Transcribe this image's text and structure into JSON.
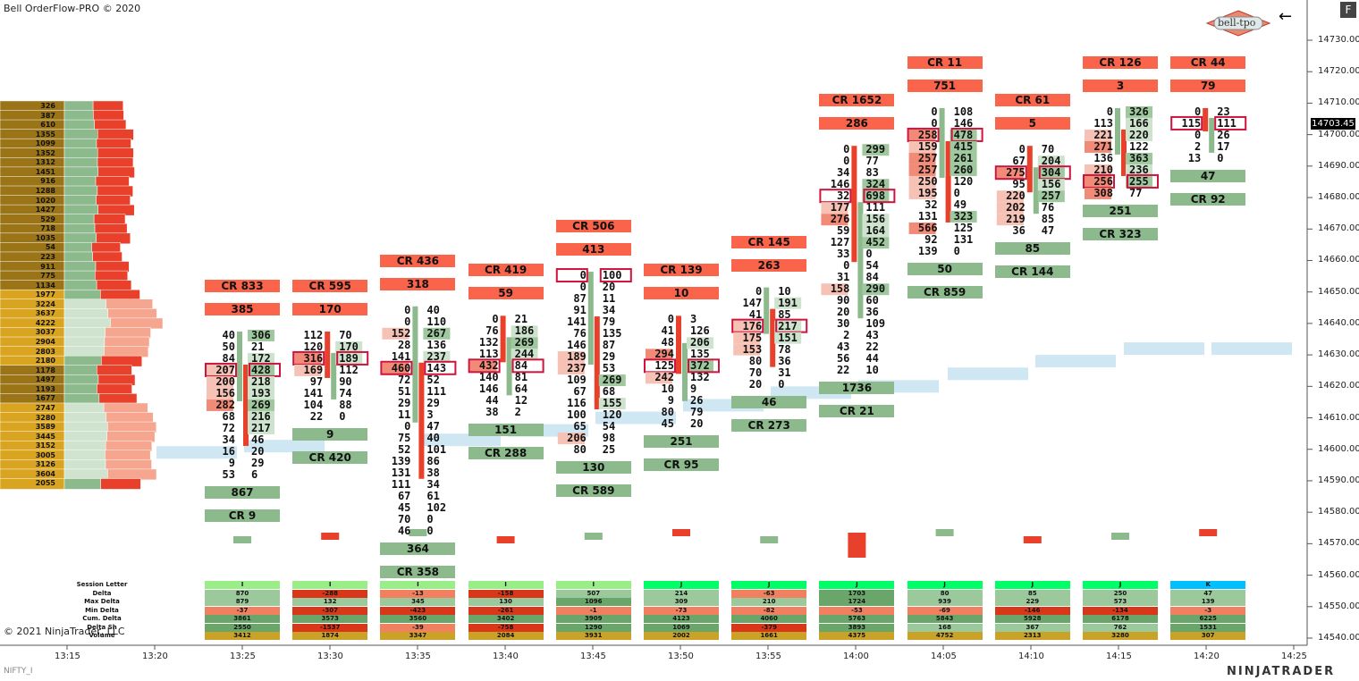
{
  "header": {
    "title": "Bell OrderFlow-PRO © 2020",
    "copyright": "© 2021 NinjaTrader, LLC",
    "instrument": "NIFTY_I",
    "brand": "NINJATRADER",
    "logo_text": "bell-tpo",
    "f_button": "F",
    "current_price": "14703.45"
  },
  "colors": {
    "cr_red": "#f9644a",
    "buy_green": "#8dba8d",
    "sell_red": "#e8402a",
    "imbalance_box": "#d0133c",
    "va_blue": "#cfe6f3",
    "session_i": "#99ee88",
    "session_j": "#00ff66",
    "session_k": "#00c0ff",
    "vp_gold": "#c9a227"
  },
  "chart_data": {
    "type": "table",
    "y_axis": {
      "min": 14540,
      "max": 14730,
      "ticks": [
        "14730.00",
        "14720.00",
        "14710.00",
        "14700.00",
        "14690.00",
        "14680.00",
        "14670.00",
        "14660.00",
        "14650.00",
        "14640.00",
        "14630.00",
        "14620.00",
        "14610.00",
        "14600.00",
        "14590.00",
        "14580.00",
        "14570.00",
        "14560.00",
        "14550.00",
        "14540.00"
      ]
    },
    "x_axis": {
      "ticks": [
        "13:15",
        "13:20",
        "13:25",
        "13:30",
        "13:35",
        "13:40",
        "13:45",
        "13:50",
        "13:55",
        "14:00",
        "14:05",
        "14:10",
        "14:15",
        "14:20",
        "14:25"
      ]
    },
    "volume_profile": [
      {
        "price": 14709,
        "vol": "326"
      },
      {
        "price": 14706,
        "vol": "387"
      },
      {
        "price": 14703,
        "vol": "610"
      },
      {
        "price": 14700,
        "vol": "1355"
      },
      {
        "price": 14697,
        "vol": "1099"
      },
      {
        "price": 14694,
        "vol": "1352"
      },
      {
        "price": 14691,
        "vol": "1312"
      },
      {
        "price": 14688,
        "vol": "1451"
      },
      {
        "price": 14685,
        "vol": "916"
      },
      {
        "price": 14682,
        "vol": "1288"
      },
      {
        "price": 14679,
        "vol": "1020"
      },
      {
        "price": 14676,
        "vol": "1427"
      },
      {
        "price": 14673,
        "vol": "529"
      },
      {
        "price": 14670,
        "vol": "718"
      },
      {
        "price": 14667,
        "vol": "1035"
      },
      {
        "price": 14664,
        "vol": "54"
      },
      {
        "price": 14661,
        "vol": "223"
      },
      {
        "price": 14658,
        "vol": "911"
      },
      {
        "price": 14655,
        "vol": "775"
      },
      {
        "price": 14652,
        "vol": "1134"
      },
      {
        "price": 14649,
        "vol": "1977"
      },
      {
        "price": 14646,
        "vol": "3224"
      },
      {
        "price": 14643,
        "vol": "3637"
      },
      {
        "price": 14640,
        "vol": "4222"
      },
      {
        "price": 14637,
        "vol": "3037"
      },
      {
        "price": 14634,
        "vol": "2904"
      },
      {
        "price": 14631,
        "vol": "2803"
      },
      {
        "price": 14628,
        "vol": "2180"
      },
      {
        "price": 14625,
        "vol": "1178"
      },
      {
        "price": 14622,
        "vol": "1497"
      },
      {
        "price": 14619,
        "vol": "1193"
      },
      {
        "price": 14616,
        "vol": "1677"
      },
      {
        "price": 14613,
        "vol": "2747"
      },
      {
        "price": 14610,
        "vol": "3280"
      },
      {
        "price": 14607,
        "vol": "3589"
      },
      {
        "price": 14604,
        "vol": "3445"
      },
      {
        "price": 14601,
        "vol": "3152"
      },
      {
        "price": 14598,
        "vol": "3005"
      },
      {
        "price": 14595,
        "vol": "3126"
      },
      {
        "price": 14592,
        "vol": "3604"
      },
      {
        "price": 14589,
        "vol": "2055"
      }
    ],
    "bars": [
      {
        "time": "13:25",
        "cr_top": "CR 833",
        "tot_top": "385",
        "cr_bot": "CR 9",
        "tot_bot": "867",
        "rows": [
          [
            "40",
            "306"
          ],
          [
            "50",
            "21"
          ],
          [
            "84",
            "172"
          ],
          [
            "207",
            "428"
          ],
          [
            "200",
            "218"
          ],
          [
            "156",
            "193"
          ],
          [
            "282",
            "269"
          ],
          [
            "68",
            "216"
          ],
          [
            "72",
            "217"
          ],
          [
            "34",
            "46"
          ],
          [
            "16",
            "20"
          ],
          [
            "9",
            "29"
          ],
          [
            "53",
            "6"
          ]
        ],
        "imb": 3
      },
      {
        "time": "13:30",
        "cr_top": "CR 595",
        "tot_top": "170",
        "cr_bot": "CR 420",
        "tot_bot": "9",
        "rows": [
          [
            "112",
            "70"
          ],
          [
            "120",
            "170"
          ],
          [
            "316",
            "189"
          ],
          [
            "169",
            "112"
          ],
          [
            "97",
            "90"
          ],
          [
            "141",
            "74"
          ],
          [
            "104",
            "88"
          ],
          [
            "22",
            "0"
          ]
        ],
        "imb": 2
      },
      {
        "time": "13:35",
        "cr_top": "CR 436",
        "tot_top": "318",
        "cr_bot": "CR 358",
        "tot_bot": "364",
        "rows": [
          [
            "0",
            "40"
          ],
          [
            "0",
            "110"
          ],
          [
            "152",
            "267"
          ],
          [
            "28",
            "136"
          ],
          [
            "141",
            "237"
          ],
          [
            "460",
            "143"
          ],
          [
            "72",
            "52"
          ],
          [
            "51",
            "111"
          ],
          [
            "29",
            "29"
          ],
          [
            "11",
            "3"
          ],
          [
            "0",
            "47"
          ],
          [
            "75",
            "40"
          ],
          [
            "52",
            "101"
          ],
          [
            "139",
            "86"
          ],
          [
            "131",
            "38"
          ],
          [
            "111",
            "34"
          ],
          [
            "67",
            "61"
          ],
          [
            "45",
            "102"
          ],
          [
            "70",
            "0"
          ],
          [
            "46",
            "0"
          ]
        ],
        "imb": 5
      },
      {
        "time": "13:40",
        "cr_top": "CR 419",
        "tot_top": "59",
        "cr_bot": "CR 288",
        "tot_bot": "151",
        "rows": [
          [
            "0",
            "21"
          ],
          [
            "76",
            "186"
          ],
          [
            "132",
            "269"
          ],
          [
            "113",
            "244"
          ],
          [
            "432",
            "84"
          ],
          [
            "140",
            "81"
          ],
          [
            "146",
            "64"
          ],
          [
            "44",
            "12"
          ],
          [
            "38",
            "2"
          ]
        ],
        "imb": 4
      },
      {
        "time": "13:45",
        "cr_top": "CR 506",
        "tot_top": "413",
        "cr_bot": "CR 589",
        "tot_bot": "130",
        "rows": [
          [
            "0",
            "100"
          ],
          [
            "0",
            "20"
          ],
          [
            "87",
            "11"
          ],
          [
            "91",
            "34"
          ],
          [
            "141",
            "79"
          ],
          [
            "76",
            "135"
          ],
          [
            "146",
            "87"
          ],
          [
            "189",
            "29"
          ],
          [
            "237",
            "53"
          ],
          [
            "109",
            "269"
          ],
          [
            "67",
            "68"
          ],
          [
            "116",
            "155"
          ],
          [
            "100",
            "120"
          ],
          [
            "65",
            "54"
          ],
          [
            "206",
            "98"
          ],
          [
            "80",
            "25"
          ]
        ],
        "imb": 0
      },
      {
        "time": "13:50",
        "cr_top": "CR 139",
        "tot_top": "10",
        "cr_bot": "CR 95",
        "tot_bot": "251",
        "rows": [
          [
            "0",
            "3"
          ],
          [
            "41",
            "126"
          ],
          [
            "48",
            "206"
          ],
          [
            "294",
            "135"
          ],
          [
            "125",
            "372"
          ],
          [
            "242",
            "132"
          ],
          [
            "10",
            "9"
          ],
          [
            "9",
            "26"
          ],
          [
            "80",
            "79"
          ],
          [
            "45",
            "20"
          ]
        ],
        "imb": 4
      },
      {
        "time": "13:55",
        "cr_top": "CR 145",
        "tot_top": "263",
        "cr_bot": "CR 273",
        "tot_bot": "46",
        "rows": [
          [
            "0",
            "10"
          ],
          [
            "147",
            "191"
          ],
          [
            "41",
            "85"
          ],
          [
            "176",
            "217"
          ],
          [
            "175",
            "151"
          ],
          [
            "153",
            "78"
          ],
          [
            "80",
            "36"
          ],
          [
            "70",
            "31"
          ],
          [
            "20",
            "0"
          ]
        ],
        "imb": 3
      },
      {
        "time": "14:00",
        "cr_top": "CR 1652",
        "tot_top": "286",
        "cr_bot": "CR 21",
        "tot_bot": "1736",
        "rows": [
          [
            "0",
            "299"
          ],
          [
            "0",
            "77"
          ],
          [
            "34",
            "83"
          ],
          [
            "146",
            "324"
          ],
          [
            "32",
            "698"
          ],
          [
            "177",
            "111"
          ],
          [
            "276",
            "156"
          ],
          [
            "59",
            "164"
          ],
          [
            "127",
            "452"
          ],
          [
            "33",
            "0"
          ],
          [
            "0",
            "54"
          ],
          [
            "31",
            "84"
          ],
          [
            "158",
            "290"
          ],
          [
            "90",
            "60"
          ],
          [
            "20",
            "36"
          ],
          [
            "30",
            "109"
          ],
          [
            "2",
            "43"
          ],
          [
            "43",
            "22"
          ],
          [
            "56",
            "44"
          ],
          [
            "22",
            "10"
          ]
        ],
        "imb": 4
      },
      {
        "time": "14:05",
        "cr_top": "CR 11",
        "tot_top": "751",
        "cr_bot": "CR 859",
        "tot_bot": "50",
        "rows": [
          [
            "0",
            "108"
          ],
          [
            "0",
            "146"
          ],
          [
            "258",
            "478"
          ],
          [
            "159",
            "415"
          ],
          [
            "257",
            "261"
          ],
          [
            "257",
            "260"
          ],
          [
            "250",
            "120"
          ],
          [
            "195",
            "0"
          ],
          [
            "32",
            "49"
          ],
          [
            "131",
            "323"
          ],
          [
            "566",
            "125"
          ],
          [
            "92",
            "131"
          ],
          [
            "139",
            "0"
          ]
        ],
        "imb": 2
      },
      {
        "time": "14:10",
        "cr_top": "CR 61",
        "tot_top": "5",
        "cr_bot": "CR 144",
        "tot_bot": "85",
        "rows": [
          [
            "0",
            "70"
          ],
          [
            "67",
            "204"
          ],
          [
            "275",
            "304"
          ],
          [
            "95",
            "156"
          ],
          [
            "220",
            "257"
          ],
          [
            "202",
            "76"
          ],
          [
            "219",
            "85"
          ],
          [
            "36",
            "47"
          ]
        ],
        "imb": 2
      },
      {
        "time": "14:15",
        "cr_top": "CR 126",
        "tot_top": "3",
        "cr_bot": "CR 323",
        "tot_bot": "251",
        "rows": [
          [
            "0",
            "326"
          ],
          [
            "113",
            "166"
          ],
          [
            "221",
            "220"
          ],
          [
            "271",
            "122"
          ],
          [
            "136",
            "363"
          ],
          [
            "210",
            "236"
          ],
          [
            "256",
            "255"
          ],
          [
            "308",
            "77"
          ]
        ],
        "imb": 6
      },
      {
        "time": "14:20",
        "cr_top": "CR 44",
        "tot_top": "79",
        "cr_bot": "CR 92",
        "tot_bot": "47",
        "rows": [
          [
            "0",
            "23"
          ],
          [
            "115",
            "111"
          ],
          [
            "0",
            "26"
          ],
          [
            "2",
            "17"
          ],
          [
            "13",
            "0"
          ]
        ],
        "imb": 1
      }
    ],
    "stats_rows": [
      "Session Letter",
      "Delta",
      "Max Delta",
      "Min Delta",
      "Cum. Delta",
      "Delta Sh",
      "Volume"
    ],
    "stats": [
      [
        "I",
        "870",
        "879",
        "-37",
        "3861",
        "2550",
        "3412"
      ],
      [
        "I",
        "-288",
        "132",
        "-307",
        "3573",
        "-1537",
        "1874"
      ],
      [
        "I",
        "-13",
        "345",
        "-423",
        "3560",
        "-39",
        "3347"
      ],
      [
        "I",
        "-158",
        "130",
        "-261",
        "3402",
        "-758",
        "2084"
      ],
      [
        "I",
        "507",
        "1096",
        "-1",
        "3909",
        "1290",
        "3931"
      ],
      [
        "J",
        "214",
        "309",
        "-73",
        "4123",
        "1069",
        "2002"
      ],
      [
        "J",
        "-63",
        "210",
        "-82",
        "4060",
        "-379",
        "1661"
      ],
      [
        "J",
        "1703",
        "1724",
        "-53",
        "5763",
        "3893",
        "4375"
      ],
      [
        "J",
        "80",
        "939",
        "-69",
        "5843",
        "168",
        "4752"
      ],
      [
        "J",
        "85",
        "229",
        "-146",
        "5928",
        "367",
        "2313"
      ],
      [
        "J",
        "250",
        "573",
        "-134",
        "6178",
        "762",
        "3280"
      ],
      [
        "K",
        "47",
        "139",
        "-3",
        "6225",
        "1531",
        "307"
      ]
    ]
  }
}
